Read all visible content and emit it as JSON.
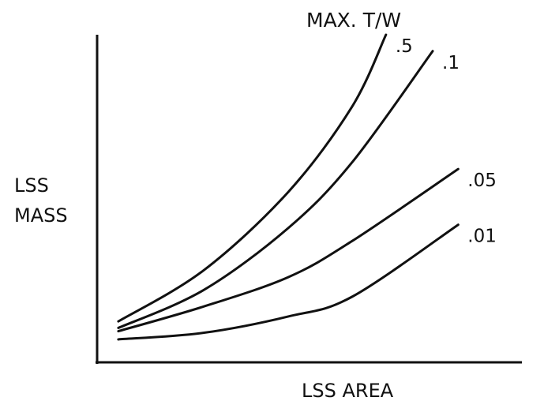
{
  "chart_data": {
    "type": "line",
    "title": "",
    "xlabel": "LSS AREA",
    "ylabel_lines": [
      "LSS",
      "MASS"
    ],
    "legend_title": "MAX. T/W",
    "grid": false,
    "xlim": [
      0,
      1
    ],
    "ylim": [
      0,
      1
    ],
    "series": [
      {
        "name": ".5",
        "values": [
          [
            0.05,
            0.125
          ],
          [
            0.25,
            0.28
          ],
          [
            0.45,
            0.52
          ],
          [
            0.6,
            0.78
          ],
          [
            0.68,
            1.0
          ]
        ]
      },
      {
        "name": ".1",
        "values": [
          [
            0.05,
            0.105
          ],
          [
            0.25,
            0.22
          ],
          [
            0.45,
            0.41
          ],
          [
            0.6,
            0.61
          ],
          [
            0.79,
            0.95
          ]
        ]
      },
      {
        "name": ".05",
        "values": [
          [
            0.05,
            0.095
          ],
          [
            0.25,
            0.17
          ],
          [
            0.45,
            0.26
          ],
          [
            0.6,
            0.37
          ],
          [
            0.85,
            0.59
          ]
        ]
      },
      {
        "name": ".01",
        "values": [
          [
            0.05,
            0.07
          ],
          [
            0.25,
            0.09
          ],
          [
            0.45,
            0.14
          ],
          [
            0.6,
            0.2
          ],
          [
            0.85,
            0.42
          ]
        ]
      }
    ]
  }
}
